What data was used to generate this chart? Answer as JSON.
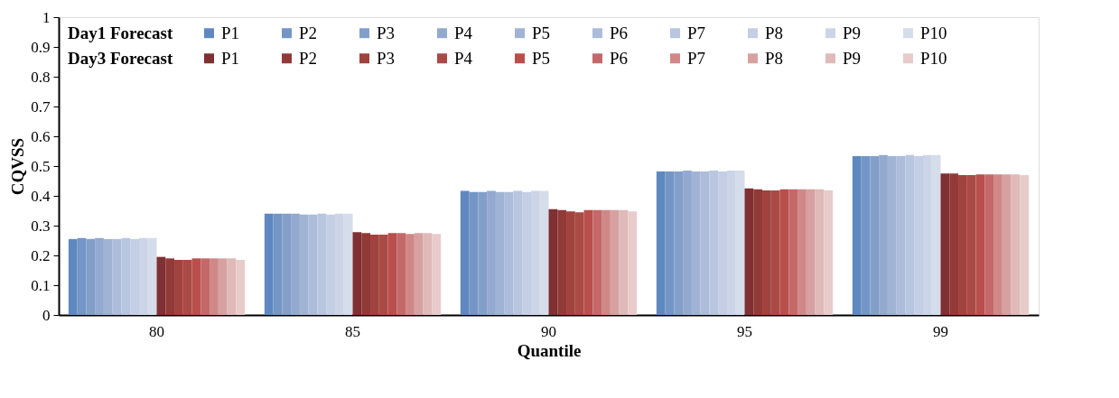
{
  "chart_data": {
    "type": "bar",
    "xlabel": "Quantile",
    "ylabel": "CQVSS",
    "legend_title": [
      "Day1 Forecast",
      "Day3 Forecast"
    ],
    "categories": [
      "80",
      "85",
      "90",
      "95",
      "99"
    ],
    "ylim": [
      0,
      1
    ],
    "yticks": [
      0,
      0.1,
      0.2,
      0.3,
      0.4,
      0.5,
      0.6,
      0.7,
      0.8,
      0.9,
      1
    ],
    "grid": false,
    "legend": "top",
    "series": [
      {
        "name": "P1",
        "color": "#5f88c0",
        "values": [
          0.255,
          0.34,
          0.417,
          0.482,
          0.533
        ]
      },
      {
        "name": "P2",
        "color": "#7396c6",
        "values": [
          0.258,
          0.34,
          0.413,
          0.482,
          0.533
        ]
      },
      {
        "name": "P3",
        "color": "#829fca",
        "values": [
          0.255,
          0.34,
          0.413,
          0.482,
          0.533
        ]
      },
      {
        "name": "P4",
        "color": "#93a9d0",
        "values": [
          0.258,
          0.34,
          0.417,
          0.485,
          0.537
        ]
      },
      {
        "name": "P5",
        "color": "#a1b3d5",
        "values": [
          0.255,
          0.337,
          0.413,
          0.482,
          0.533
        ]
      },
      {
        "name": "P6",
        "color": "#adbcda",
        "values": [
          0.255,
          0.337,
          0.413,
          0.482,
          0.533
        ]
      },
      {
        "name": "P7",
        "color": "#b8c6e0",
        "values": [
          0.258,
          0.34,
          0.417,
          0.485,
          0.537
        ]
      },
      {
        "name": "P8",
        "color": "#c4cee4",
        "values": [
          0.255,
          0.337,
          0.413,
          0.482,
          0.533
        ]
      },
      {
        "name": "P9",
        "color": "#ccd5e7",
        "values": [
          0.258,
          0.34,
          0.417,
          0.485,
          0.537
        ]
      },
      {
        "name": "P10",
        "color": "#d5dcea",
        "values": [
          0.258,
          0.34,
          0.417,
          0.485,
          0.537
        ]
      },
      {
        "name": "P1",
        "color": "#7f3032",
        "values": [
          0.195,
          0.278,
          0.355,
          0.425,
          0.475
        ]
      },
      {
        "name": "P2",
        "color": "#923a38",
        "values": [
          0.19,
          0.275,
          0.352,
          0.422,
          0.475
        ]
      },
      {
        "name": "P3",
        "color": "#a0423e",
        "values": [
          0.185,
          0.27,
          0.348,
          0.418,
          0.47
        ]
      },
      {
        "name": "P4",
        "color": "#ab4a45",
        "values": [
          0.185,
          0.27,
          0.345,
          0.418,
          0.47
        ]
      },
      {
        "name": "P5",
        "color": "#b94f4b",
        "values": [
          0.19,
          0.275,
          0.352,
          0.422,
          0.472
        ]
      },
      {
        "name": "P6",
        "color": "#c5686a",
        "values": [
          0.19,
          0.275,
          0.352,
          0.422,
          0.472
        ]
      },
      {
        "name": "P7",
        "color": "#cf8887",
        "values": [
          0.19,
          0.272,
          0.352,
          0.422,
          0.472
        ]
      },
      {
        "name": "P8",
        "color": "#d8a1a1",
        "values": [
          0.19,
          0.275,
          0.352,
          0.422,
          0.472
        ]
      },
      {
        "name": "P9",
        "color": "#e0b9b9",
        "values": [
          0.19,
          0.275,
          0.352,
          0.422,
          0.472
        ]
      },
      {
        "name": "P10",
        "color": "#e8cbcb",
        "values": [
          0.185,
          0.272,
          0.348,
          0.418,
          0.47
        ]
      }
    ]
  }
}
